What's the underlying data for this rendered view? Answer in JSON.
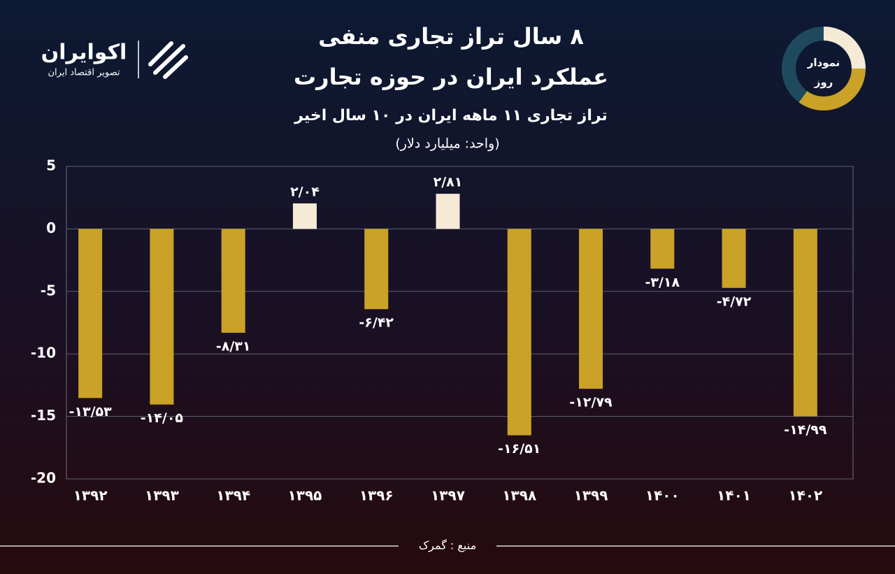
{
  "branding": {
    "logo": "اکوایران",
    "tagline": "تصویر اقتصاد ایران",
    "badge_top": "نمودار",
    "badge_bottom": "روز"
  },
  "chart_data": {
    "type": "bar",
    "title": "۸ سال تراز تجاری منفی",
    "title2": "عملکرد ایران در حوزه تجارت",
    "subtitle": "تراز تجاری ۱۱ ماهه ایران در ۱۰ سال اخیر",
    "unit": "(واحد: میلیارد دلار)",
    "source": "منبع : گمرک",
    "categories": [
      "۱۳۹۲",
      "۱۳۹۳",
      "۱۳۹۴",
      "۱۳۹۵",
      "۱۳۹۶",
      "۱۳۹۷",
      "۱۳۹۸",
      "۱۳۹۹",
      "۱۴۰۰",
      "۱۴۰۱",
      "۱۴۰۲"
    ],
    "values": [
      -13.53,
      -14.05,
      -8.31,
      2.04,
      -6.42,
      2.81,
      -16.51,
      -12.79,
      -3.18,
      -4.72,
      -14.99
    ],
    "value_labels": [
      "-۱۳/۵۳",
      "-۱۴/۰۵",
      "-۸/۳۱",
      "۲/۰۴",
      "-۶/۴۲",
      "۲/۸۱",
      "-۱۶/۵۱",
      "-۱۲/۷۹",
      "-۳/۱۸",
      "-۴/۷۲",
      "-۱۴/۹۹"
    ],
    "color": "#c9a227",
    "positive_color": "#f4ead6",
    "ylim": [
      -20,
      5
    ],
    "yticks": [
      5,
      0,
      -5,
      -10,
      -15,
      -20
    ],
    "grid": true
  }
}
